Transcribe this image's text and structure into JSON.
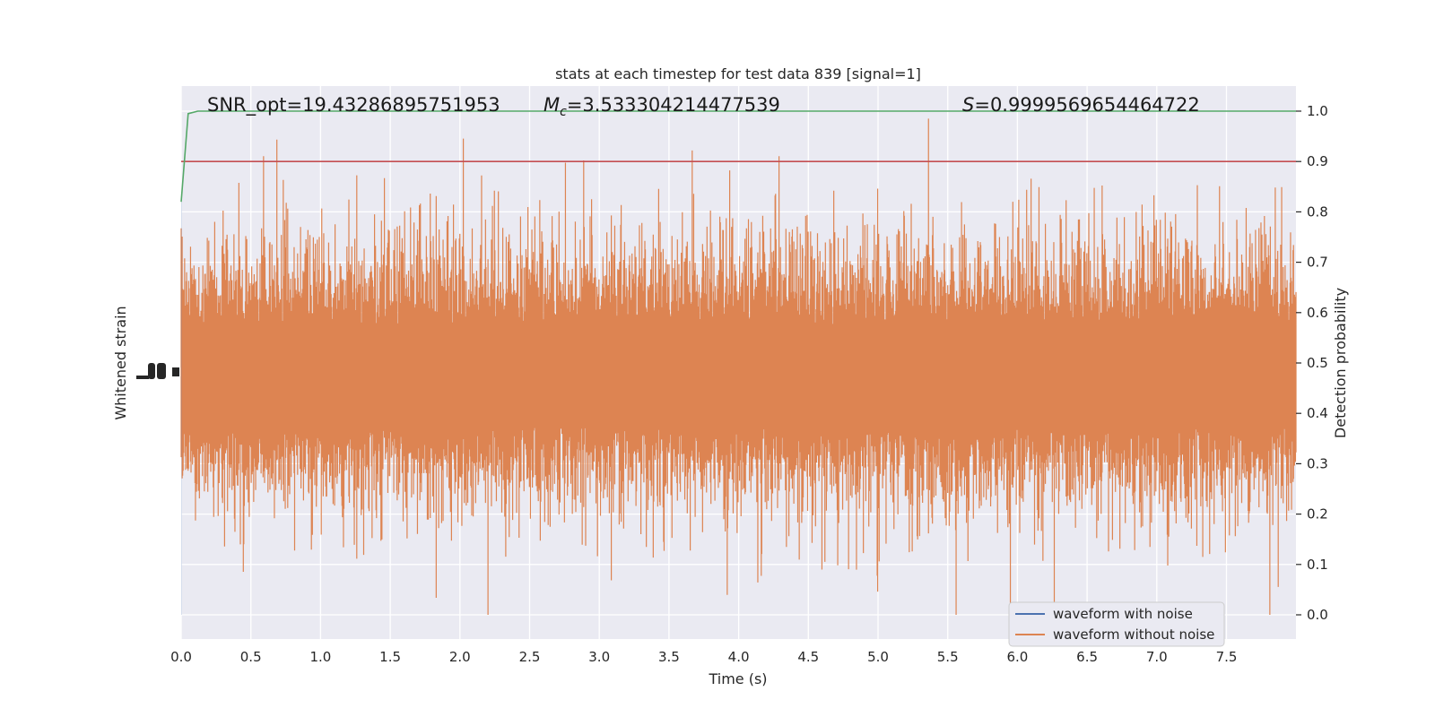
{
  "chart_data": {
    "type": "line",
    "title": "stats at each timestep for test data 839 [signal=1]",
    "xlabel": "Time (s)",
    "ylabel_left": "Whitened strain",
    "ylabel_right": "Detection probability",
    "xlim": [
      0.0,
      8.0
    ],
    "ylim_right": [
      -0.05,
      1.05
    ],
    "xticks": [
      "0.0",
      "0.5",
      "1.0",
      "1.5",
      "2.0",
      "2.5",
      "3.0",
      "3.5",
      "4.0",
      "4.5",
      "5.0",
      "5.5",
      "6.0",
      "6.5",
      "7.0",
      "7.5"
    ],
    "yticks_right": [
      "0.0",
      "0.1",
      "0.2",
      "0.3",
      "0.4",
      "0.5",
      "0.6",
      "0.7",
      "0.8",
      "0.9",
      "1.0"
    ],
    "annotations": {
      "snr": "SNR_opt=19.43286895751953",
      "mc_symbol": "M",
      "mc_sub": "c",
      "mc_value": "=3.533304214477539",
      "s_symbol": "S",
      "s_value": "=0.9999569654464722"
    },
    "legend": {
      "position": "lower-right",
      "entries": [
        "waveform with noise",
        "waveform without noise"
      ]
    },
    "grid": true,
    "colors": {
      "background": "#eaeaf2",
      "grid": "#ffffff",
      "waveform_with_noise": "#4c72b0",
      "waveform_without_noise": "#dd8452",
      "probability": "#55a868",
      "threshold": "#c44e52"
    },
    "series": [
      {
        "name": "waveform with noise",
        "description_values": "hidden behind orange trace"
      },
      {
        "name": "waveform without noise",
        "note": "dense noisy strain trace filling approx. 0.2–0.75 on probability scale, spikes up to ~0.96 and down to ~0.0"
      },
      {
        "x": [
          0.0,
          0.05,
          0.12,
          0.2,
          8.0
        ],
        "y": [
          0.82,
          0.995,
          1.0,
          1.0,
          1.0
        ]
      },
      {
        "x": [
          0.0,
          8.0
        ],
        "y": [
          0.9,
          0.9
        ]
      }
    ]
  }
}
